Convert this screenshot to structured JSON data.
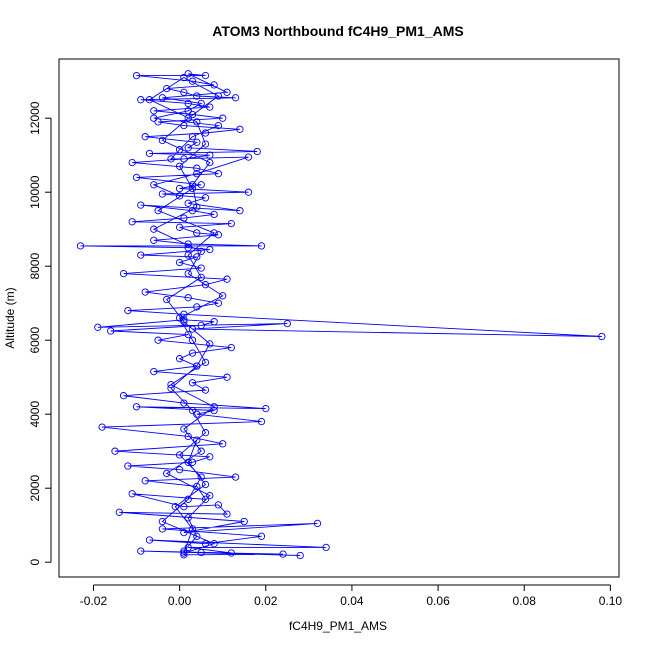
{
  "chart_data": {
    "type": "scatter",
    "title": "ATOM3 Northbound fC4H9_PM1_AMS",
    "xlabel": "fC4H9_PM1_AMS",
    "ylabel": "Altitude (m)",
    "xlim": [
      -0.028,
      0.102
    ],
    "ylim": [
      -400,
      13600
    ],
    "xticks": [
      -0.02,
      0.0,
      0.02,
      0.04,
      0.06,
      0.08,
      0.1
    ],
    "xtick_labels": [
      "-0.02",
      "0.00",
      "0.02",
      "0.04",
      "0.06",
      "0.08",
      "0.10"
    ],
    "yticks": [
      0,
      2000,
      4000,
      6000,
      8000,
      10000,
      12000
    ],
    "ytick_labels": [
      "0",
      "2000",
      "4000",
      "6000",
      "8000",
      "10000",
      "12000"
    ],
    "grid": false,
    "legend": "none",
    "color": "#0000ff",
    "series": [
      {
        "x": [
          0.001,
          0.024,
          0.005,
          0.028,
          -0.009,
          0.012,
          0.002,
          0.034,
          -0.007,
          0.006,
          0.019,
          -0.004,
          0.032,
          0.001,
          0.015,
          -0.014,
          0.011,
          0.009,
          0.001,
          -0.011,
          0.006,
          0.004,
          -0.008,
          0.013,
          0.0,
          -0.012,
          0.003,
          0.007,
          -0.015,
          0.01,
          0.002,
          -0.018,
          0.019,
          0.004,
          0.008,
          -0.01,
          0.02,
          0.001,
          -0.013,
          0.006,
          0.003,
          0.011,
          -0.006,
          0.004,
          0.0,
          0.003,
          0.012,
          -0.005,
          0.002,
          -0.016,
          0.005,
          0.008,
          0.001,
          -0.019,
          0.025,
          0.003,
          0.098,
          0.001,
          -0.012,
          0.004,
          0.009,
          0.002,
          -0.008,
          0.006,
          0.011,
          -0.013,
          0.005,
          0.0,
          0.004,
          -0.009,
          0.007,
          0.002,
          -0.023,
          0.019,
          0.002,
          -0.006,
          0.009,
          0.004,
          0.0,
          0.012,
          -0.011,
          0.001,
          0.008,
          0.003,
          -0.009,
          0.014,
          0.002,
          0.006,
          -0.004,
          0.016,
          0.0,
          0.005,
          -0.01,
          0.009,
          0.004,
          -0.011,
          0.001,
          0.007,
          -0.007,
          0.018,
          0.002,
          0.004,
          -0.008,
          0.006,
          0.014,
          0.001,
          -0.005,
          0.01,
          0.003,
          -0.006,
          0.007,
          0.002,
          -0.009,
          0.013,
          0.004,
          0.001,
          -0.003,
          0.008,
          0.003,
          -0.01,
          0.006,
          0.002,
          0.011,
          -0.004,
          0.005,
          0.002,
          -0.006,
          0.009,
          0.003,
          0.0,
          -0.002,
          0.016,
          0.004,
          -0.006,
          0.0
        ],
        "y": [
          200,
          220,
          260,
          180,
          300,
          250,
          400,
          400,
          600,
          500,
          700,
          900,
          1050,
          800,
          1100,
          1350,
          1300,
          1550,
          1500,
          1850,
          1700,
          2050,
          2200,
          2300,
          2500,
          2600,
          2700,
          2850,
          3000,
          3200,
          3400,
          3650,
          3800,
          4000,
          4100,
          4200,
          4150,
          4300,
          4500,
          4650,
          4850,
          5000,
          5150,
          5300,
          5500,
          5650,
          5800,
          6000,
          6150,
          6250,
          6400,
          6500,
          6550,
          6350,
          6450,
          6300,
          6100,
          6700,
          6800,
          6900,
          7000,
          7150,
          7300,
          7500,
          7650,
          7800,
          7950,
          8100,
          8250,
          8300,
          8450,
          8500,
          8550,
          8550,
          8600,
          8700,
          8850,
          8900,
          9050,
          9150,
          9200,
          9300,
          9400,
          9500,
          9650,
          9500,
          9700,
          9850,
          9950,
          10000,
          10100,
          10200,
          10400,
          10500,
          10650,
          10800,
          10900,
          11000,
          11050,
          11100,
          11200,
          11350,
          11500,
          11600,
          11700,
          11800,
          11900,
          12000,
          12100,
          12200,
          12300,
          12400,
          12500,
          12550,
          12600,
          12700,
          12800,
          12900,
          13000,
          13150,
          13150,
          13200,
          12700,
          12550,
          12400,
          12200,
          12000,
          11800,
          11500,
          11150,
          10900,
          10950,
          10500,
          10200,
          9900
        ],
        "segments_x": [
          0.001,
          0.004,
          0.002,
          0.007,
          -0.003,
          0.005,
          0.001,
          0.008,
          -0.002,
          0.006,
          0.003,
          0.0,
          0.01,
          0.002,
          0.005,
          -0.006,
          0.004,
          0.003,
          0.007,
          -0.004,
          0.002,
          0.009,
          0.001,
          -0.007,
          0.004,
          0.006,
          0.0,
          0.003,
          -0.005,
          0.008,
          0.002,
          0.005,
          -0.003,
          0.001,
          0.007,
          0.004,
          -0.002,
          0.003,
          0.006,
          0.0,
          0.005,
          0.002,
          -0.004,
          0.008,
          0.001,
          0.003,
          -0.001,
          0.006,
          0.002,
          0.004
        ],
        "segments_y": [
          300,
          700,
          1200,
          1800,
          2400,
          3000,
          3600,
          4200,
          4800,
          5400,
          6000,
          6600,
          7200,
          7800,
          8400,
          9000,
          9600,
          10200,
          10800,
          11400,
          12000,
          12600,
          13100,
          12500,
          11900,
          11300,
          10700,
          10100,
          9500,
          8900,
          8300,
          7700,
          7100,
          6500,
          5900,
          5300,
          4700,
          4100,
          3500,
          2900,
          2300,
          1700,
          1100,
          500,
          250,
          900,
          1500,
          2100,
          2700,
          3300
        ]
      }
    ]
  }
}
